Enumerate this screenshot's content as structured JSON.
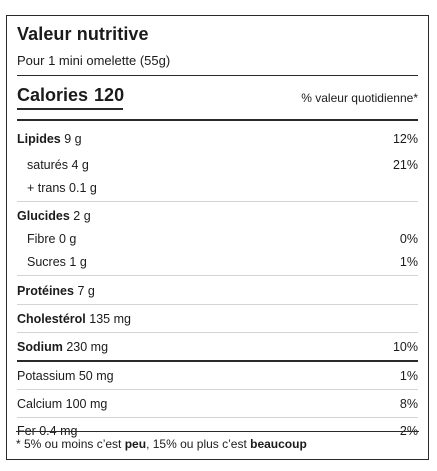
{
  "label": {
    "title": "Valeur nutritive",
    "serving": "Pour 1 mini omelette (55g)",
    "calories_label": "Calories",
    "calories_value": "120",
    "dv_header": "% valeur quotidienne*"
  },
  "nutrients": {
    "lipides": {
      "name": "Lipides",
      "amount": "9 g",
      "pct": "12%"
    },
    "satures": {
      "name": "saturés",
      "amount": "4 g",
      "pct": "21%"
    },
    "trans": {
      "name": "+ trans",
      "amount": "0.1 g",
      "pct": ""
    },
    "glucides": {
      "name": "Glucides",
      "amount": "2 g",
      "pct": ""
    },
    "fibre": {
      "name": "Fibre",
      "amount": "0 g",
      "pct": "0%"
    },
    "sucres": {
      "name": "Sucres",
      "amount": "1 g",
      "pct": "1%"
    },
    "proteines": {
      "name": "Protéines",
      "amount": "7 g",
      "pct": ""
    },
    "cholesterol": {
      "name": "Cholestérol",
      "amount": "135 mg",
      "pct": ""
    },
    "sodium": {
      "name": "Sodium",
      "amount": "230 mg",
      "pct": "10%"
    },
    "potassium": {
      "name": "Potassium",
      "amount": "50 mg",
      "pct": "1%"
    },
    "calcium": {
      "name": "Calcium",
      "amount": "100 mg",
      "pct": "8%"
    },
    "fer": {
      "name": "Fer",
      "amount": "0.4 mg",
      "pct": "2%"
    }
  },
  "footnote": {
    "part1": "* 5% ou moins c’est ",
    "bold1": "peu",
    "part2": ", 15% ou plus c’est ",
    "bold2": "beaucoup"
  }
}
